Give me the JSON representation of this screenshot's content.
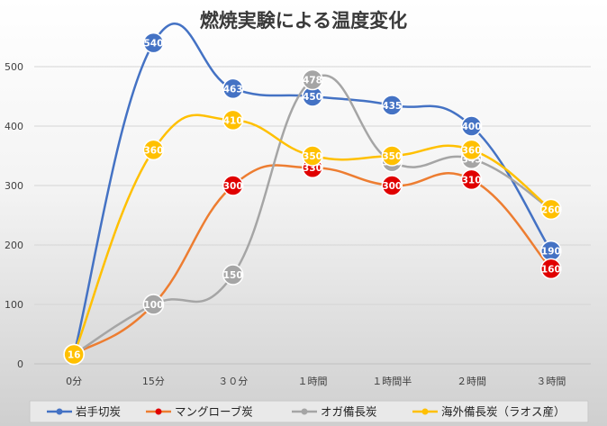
{
  "chart_data": {
    "type": "line",
    "title": "燃焼実験による温度変化",
    "categories": [
      "0分",
      "15分",
      "３０分",
      "１時間",
      "１時間半",
      "２時間",
      "３時間"
    ],
    "ylim": [
      0,
      600
    ],
    "yticks": [
      0,
      100,
      200,
      300,
      400,
      500
    ],
    "grid": true,
    "smooth": true,
    "legend_position": "bottom",
    "series": [
      {
        "name": "岩手切炭",
        "color": "#4472C4",
        "values": [
          16,
          540,
          463,
          450,
          435,
          400,
          190
        ]
      },
      {
        "name": "マングローブ炭",
        "color": "#ED7D31",
        "marker_color": "#E00000",
        "values": [
          16,
          100,
          300,
          330,
          300,
          310,
          160
        ]
      },
      {
        "name": "オガ備長炭",
        "color": "#A5A5A5",
        "values": [
          16,
          100,
          150,
          478,
          340,
          345,
          260
        ]
      },
      {
        "name": "海外備長炭（ラオス産）",
        "color": "#FFC000",
        "values": [
          16,
          360,
          410,
          350,
          350,
          360,
          260
        ]
      }
    ]
  }
}
